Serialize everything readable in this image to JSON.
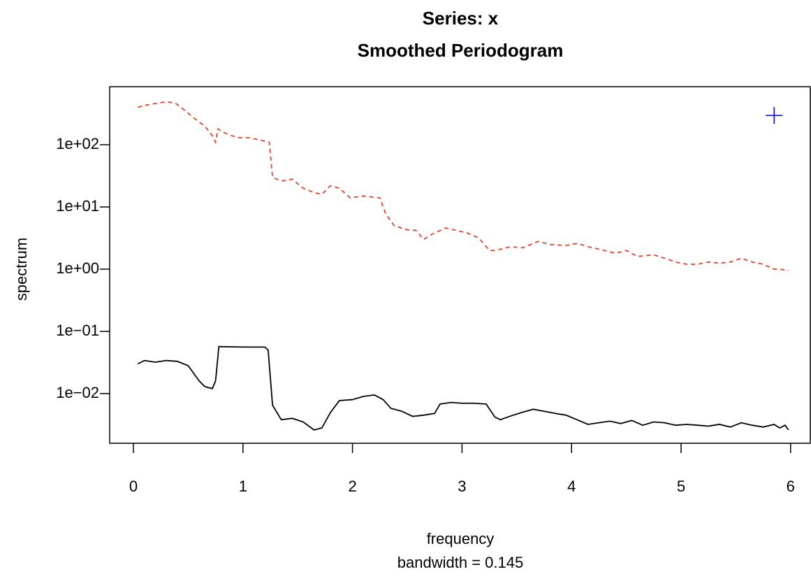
{
  "chart_data": {
    "type": "line",
    "title": "Series: x",
    "subtitle": "Smoothed Periodogram",
    "x_label": "frequency",
    "x_sublabel": "bandwidth = 0.145",
    "y_label": "spectrum",
    "log_y": true,
    "xlim": [
      -0.217,
      6.18
    ],
    "ylim": [
      0.00159,
      857
    ],
    "xticks": [
      0,
      1,
      2,
      3,
      4,
      5,
      6
    ],
    "yticks": [
      {
        "value": 0.01,
        "label": "1e−02"
      },
      {
        "value": 0.1,
        "label": "1e−01"
      },
      {
        "value": 1,
        "label": "1e+00"
      },
      {
        "value": 10,
        "label": "1e+01"
      },
      {
        "value": 100,
        "label": "1e+02"
      }
    ],
    "series": [
      {
        "color": "#000000",
        "dashed": false,
        "x": [
          0.04,
          0.1,
          0.2,
          0.3,
          0.4,
          0.5,
          0.6,
          0.65,
          0.72,
          0.75,
          0.78,
          1.0,
          1.2,
          1.23,
          1.27,
          1.35,
          1.45,
          1.55,
          1.65,
          1.72,
          1.8,
          1.88,
          2.0,
          2.1,
          2.2,
          2.28,
          2.35,
          2.45,
          2.55,
          2.65,
          2.75,
          2.8,
          2.9,
          3.0,
          3.1,
          3.22,
          3.3,
          3.35,
          3.45,
          3.55,
          3.65,
          3.75,
          3.85,
          3.95,
          4.05,
          4.15,
          4.25,
          4.35,
          4.45,
          4.55,
          4.65,
          4.75,
          4.85,
          4.95,
          5.05,
          5.15,
          5.25,
          5.35,
          5.45,
          5.55,
          5.65,
          5.75,
          5.85,
          5.9,
          5.95,
          5.98
        ],
        "values": [
          0.03,
          0.034,
          0.032,
          0.034,
          0.033,
          0.028,
          0.016,
          0.013,
          0.012,
          0.016,
          0.057,
          0.056,
          0.056,
          0.05,
          0.0065,
          0.0038,
          0.004,
          0.0035,
          0.0026,
          0.0028,
          0.005,
          0.0077,
          0.008,
          0.009,
          0.0095,
          0.008,
          0.0058,
          0.0052,
          0.0043,
          0.0045,
          0.0048,
          0.0068,
          0.0072,
          0.007,
          0.007,
          0.0068,
          0.0042,
          0.0038,
          0.0044,
          0.005,
          0.0056,
          0.0052,
          0.0048,
          0.0045,
          0.0038,
          0.0032,
          0.0034,
          0.0036,
          0.0033,
          0.0037,
          0.0031,
          0.0035,
          0.0034,
          0.0031,
          0.0032,
          0.0031,
          0.003,
          0.0032,
          0.0029,
          0.0034,
          0.0031,
          0.0029,
          0.0032,
          0.0028,
          0.0031,
          0.0026
        ]
      },
      {
        "color": "#e8412e",
        "dashed": true,
        "x": [
          0.04,
          0.1,
          0.2,
          0.3,
          0.38,
          0.45,
          0.55,
          0.65,
          0.72,
          0.75,
          0.77,
          0.85,
          0.95,
          1.05,
          1.15,
          1.24,
          1.27,
          1.35,
          1.45,
          1.55,
          1.65,
          1.72,
          1.8,
          1.88,
          1.98,
          2.1,
          2.25,
          2.3,
          2.38,
          2.5,
          2.58,
          2.65,
          2.72,
          2.85,
          2.95,
          3.05,
          3.15,
          3.25,
          3.3,
          3.45,
          3.55,
          3.7,
          3.8,
          3.95,
          4.05,
          4.15,
          4.3,
          4.4,
          4.5,
          4.6,
          4.75,
          4.85,
          4.95,
          5.05,
          5.15,
          5.25,
          5.35,
          5.45,
          5.55,
          5.65,
          5.75,
          5.85,
          5.9,
          5.98
        ],
        "values": [
          400,
          430,
          460,
          490,
          470,
          380,
          270,
          200,
          140,
          110,
          180,
          150,
          130,
          130,
          120,
          110,
          30,
          26,
          28,
          20,
          17,
          16,
          22,
          20,
          14,
          15,
          14,
          8,
          5,
          4.3,
          4.2,
          3.0,
          3.6,
          4.6,
          4.2,
          3.8,
          3.2,
          2.0,
          2.0,
          2.3,
          2.2,
          2.8,
          2.5,
          2.4,
          2.6,
          2.3,
          2.0,
          1.8,
          2.0,
          1.6,
          1.7,
          1.5,
          1.3,
          1.2,
          1.2,
          1.3,
          1.25,
          1.3,
          1.5,
          1.3,
          1.2,
          1.0,
          1.0,
          0.95
        ]
      }
    ],
    "cross": {
      "x": 5.85,
      "y": 296,
      "color": "#0000ff"
    }
  }
}
